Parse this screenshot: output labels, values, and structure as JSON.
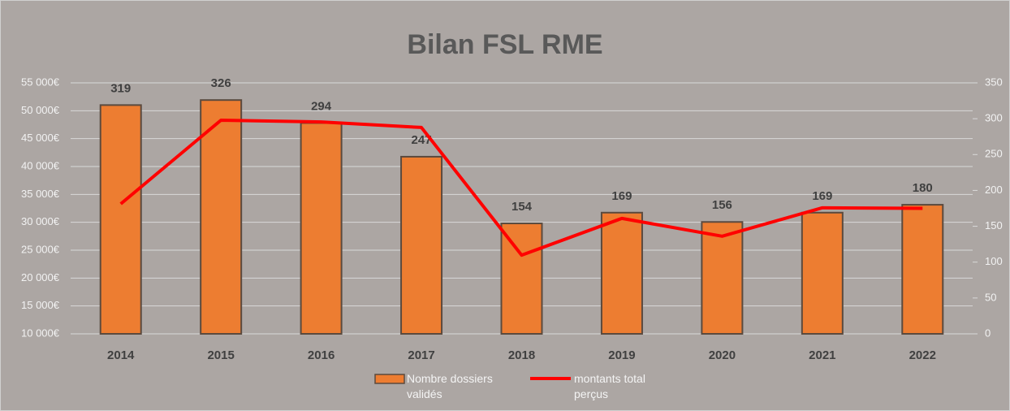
{
  "chart_data": {
    "type": "bar",
    "title": "Bilan FSL  RME",
    "categories": [
      "2014",
      "2015",
      "2016",
      "2017",
      "2018",
      "2019",
      "2020",
      "2021",
      "2022"
    ],
    "series": [
      {
        "name": "Nombre dossiers validés",
        "type": "bar",
        "axis": "y2",
        "color": "#ed7d31",
        "values": [
          319,
          326,
          294,
          247,
          154,
          169,
          156,
          169,
          180
        ]
      },
      {
        "name": "montants total perçus",
        "type": "line",
        "color": "#ff0000",
        "values": [
          33300,
          48300,
          48000,
          47000,
          24100,
          30700,
          27500,
          32600,
          32500
        ]
      }
    ],
    "ylim": [
      10000,
      55000
    ],
    "yticks": [
      {
        "value": 10000,
        "label": "10 000€"
      },
      {
        "value": 15000,
        "label": "15 000€"
      },
      {
        "value": 20000,
        "label": "20 000€"
      },
      {
        "value": 25000,
        "label": "25 000€"
      },
      {
        "value": 30000,
        "label": "30 000€"
      },
      {
        "value": 35000,
        "label": "35 000€"
      },
      {
        "value": 40000,
        "label": "40 000€"
      },
      {
        "value": 45000,
        "label": "45 000€"
      },
      {
        "value": 50000,
        "label": "50 000€"
      },
      {
        "value": 55000,
        "label": "55 000€"
      }
    ],
    "y2lim": [
      0,
      350
    ],
    "y2ticks": [
      0,
      50,
      100,
      150,
      200,
      250,
      300,
      350
    ],
    "grid": true,
    "legend": "bottom"
  }
}
